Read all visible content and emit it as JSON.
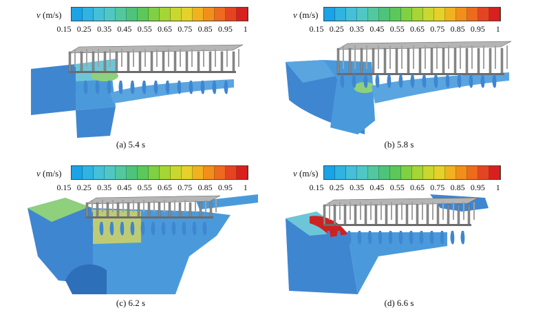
{
  "colorbar": {
    "variable": "v",
    "unit": "(m/s)",
    "colors": [
      "#1aa3e6",
      "#2fb3e0",
      "#44c0d8",
      "#4fc8c4",
      "#52c89e",
      "#4ec47a",
      "#5cc85a",
      "#7fd042",
      "#a6d536",
      "#cad72e",
      "#e5d12a",
      "#f0b21f",
      "#f28e1c",
      "#ee6a1e",
      "#e54422",
      "#d8201f"
    ],
    "ticks": [
      "0.15",
      "0.25",
      "0.35",
      "0.45",
      "0.55",
      "0.65",
      "0.75",
      "0.85",
      "0.95",
      "1"
    ]
  },
  "panels": [
    {
      "caption": "(a) 5.4 s"
    },
    {
      "caption": "(b) 5.8 s"
    },
    {
      "caption": "(c) 6.2 s"
    },
    {
      "caption": "(d) 6.6 s"
    }
  ],
  "palette": {
    "fluid_base": "#3f86d0",
    "fluid_light": "#5aa5e0",
    "fluid_cyan": "#6cc6d8",
    "fluid_green": "#8fd07c",
    "fluid_yellow": "#d9d85a",
    "fluid_red": "#cc2222",
    "structure": "#9a9a9a",
    "structure_dark": "#6b6b6b"
  }
}
